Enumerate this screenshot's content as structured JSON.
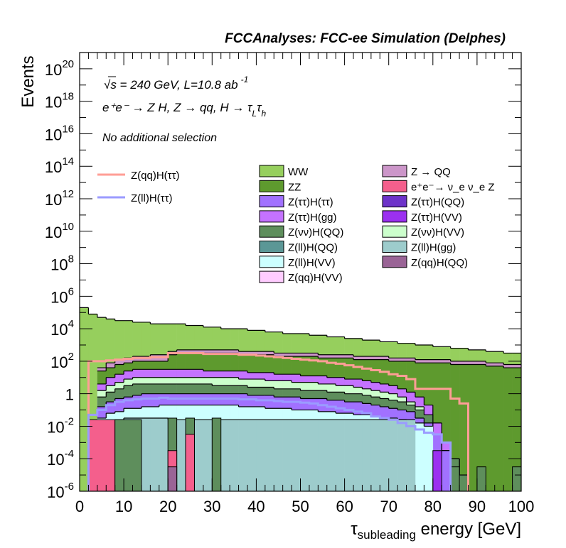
{
  "chart_data": {
    "type": "area",
    "title": "FCCAnalyses: FCC-ee Simulation (Delphes)",
    "xlabel": "τ_subleading energy [GeV]",
    "xlabel_main": "τ",
    "xlabel_sub": "subleading",
    "xlabel_rest": " energy [GeV]",
    "ylabel": "Events",
    "xlim": [
      0,
      100
    ],
    "ylim": [
      1e-06,
      1e+21
    ],
    "yscale": "log",
    "xticks": [
      "0",
      "10",
      "20",
      "30",
      "40",
      "50",
      "60",
      "70",
      "80",
      "90",
      "100"
    ],
    "yticks": [
      {
        "base": "10",
        "exp": "20",
        "value": 1e+20
      },
      {
        "base": "10",
        "exp": "18",
        "value": 1e+18
      },
      {
        "base": "10",
        "exp": "16",
        "value": 1e+16
      },
      {
        "base": "10",
        "exp": "14",
        "value": 100000000000000.0
      },
      {
        "base": "10",
        "exp": "12",
        "value": 1000000000000.0
      },
      {
        "base": "10",
        "exp": "10",
        "value": 10000000000.0
      },
      {
        "base": "10",
        "exp": "8",
        "value": 100000000.0
      },
      {
        "base": "10",
        "exp": "6",
        "value": 1000000.0
      },
      {
        "base": "10",
        "exp": "4",
        "value": 10000.0
      },
      {
        "base": "10",
        "exp": "2",
        "value": 100.0
      },
      {
        "base": "1",
        "exp": "",
        "value": 1
      },
      {
        "base": "10",
        "exp": "-2",
        "value": 0.01
      },
      {
        "base": "10",
        "exp": "-4",
        "value": 0.0001
      },
      {
        "base": "10",
        "exp": "-6",
        "value": 1e-06
      }
    ],
    "annotations": {
      "line1": "√s = 240 GeV, L=10.8 ab",
      "line1_sup": "-1",
      "line2": "e⁺e⁻ → Z H, Z → qq, H → τ",
      "line2_sub1": "L",
      "line2_mid": "τ",
      "line2_sub2": "h",
      "line3": "No additional selection"
    },
    "legend_lines": [
      {
        "name": "Z(qq)H(ττ)",
        "color": "#ff9e96"
      },
      {
        "name": "Z(ll)H(ττ)",
        "color": "#9b9bff"
      }
    ],
    "legend_fills": [
      {
        "name": "WW",
        "color": "#96cf5d"
      },
      {
        "name": "Z → QQ",
        "color": "#cc96c9"
      },
      {
        "name": "ZZ",
        "color": "#5e9a2e"
      },
      {
        "name": "e⁺e⁻→ ν_e ν_e Z",
        "color": "#f45f8c"
      },
      {
        "name": "Z(ττ)H(ττ)",
        "color": "#a171ff"
      },
      {
        "name": "Z(ττ)H(QQ)",
        "color": "#6d33c9"
      },
      {
        "name": "Z(ττ)H(gg)",
        "color": "#c472ff"
      },
      {
        "name": "Z(ττ)H(VV)",
        "color": "#9b30f0"
      },
      {
        "name": "Z(νν)H(QQ)",
        "color": "#5e8e5c"
      },
      {
        "name": "Z(νν)H(VV)",
        "color": "#ccffcc"
      },
      {
        "name": "Z(ll)H(QQ)",
        "color": "#5b9796"
      },
      {
        "name": "Z(ll)H(gg)",
        "color": "#9dcccc"
      },
      {
        "name": "Z(ll)H(VV)",
        "color": "#ccffff"
      },
      {
        "name": "Z(qq)H(QQ)",
        "color": "#9a6496"
      },
      {
        "name": "Z(qq)H(VV)",
        "color": "#ffccff"
      }
    ],
    "stack_bin_width": 2,
    "stack_layers": [
      {
        "name": "Z(ll)H(gg)",
        "color": "#9dcccc",
        "logy": [
          null,
          null,
          -2,
          -2,
          -1.6,
          -1.5,
          -1.5,
          -1.5,
          -1.5,
          -1.5,
          -1.6,
          -1.6,
          -1.6,
          -1.6,
          -1.6,
          -1.6,
          -1.6,
          -1.6,
          -1.6,
          -1.6,
          -1.6,
          -1.6,
          -1.6,
          -1.6,
          -1.6,
          -1.6,
          -1.6,
          -1.6,
          -1.6,
          -1.6,
          -1.6,
          -1.6,
          -1.6,
          -1.6,
          -1.6,
          -1.6,
          -1.6,
          -1.6,
          null,
          null,
          null,
          null,
          null,
          null,
          null,
          null,
          null,
          null,
          null,
          null
        ]
      },
      {
        "name": "Z(ll)H(VV)",
        "color": "#ccffff",
        "logy": [
          null,
          null,
          -1.5,
          -1.2,
          -1.1,
          -0.9,
          -0.9,
          -0.8,
          -0.8,
          -0.7,
          -0.7,
          -0.7,
          -0.7,
          -0.7,
          -0.7,
          -0.7,
          -0.7,
          -0.7,
          -0.8,
          -0.8,
          -0.8,
          -0.9,
          -0.9,
          -0.9,
          -1,
          -1,
          -1,
          -1.1,
          -1.1,
          -1.2,
          -1.2,
          -1.3,
          -1.3,
          -1.4,
          -1.5,
          -1.5,
          -1.6,
          -1.7,
          -1.8,
          -2,
          null,
          null,
          null,
          null,
          null,
          null,
          null,
          null,
          null,
          null
        ]
      },
      {
        "name": "Z(ττ)H(ττ)",
        "color": "#a171ff",
        "logy": [
          null,
          null,
          -0.8,
          -0.5,
          -0.3,
          -0.2,
          -0.1,
          0,
          0,
          0,
          0,
          0,
          0,
          0,
          0,
          0,
          0,
          0,
          0,
          -0.1,
          -0.1,
          -0.1,
          -0.2,
          -0.2,
          -0.2,
          -0.3,
          -0.3,
          -0.3,
          -0.4,
          -0.4,
          -0.5,
          -0.5,
          -0.6,
          -0.7,
          -0.8,
          -0.9,
          -1,
          -1.1,
          -1.5,
          -1.8,
          -2.5,
          -3.5,
          null,
          null,
          null,
          null,
          null,
          null,
          null,
          null
        ]
      },
      {
        "name": "Z(νν)H(QQ)",
        "color": "#5e8e5c",
        "logy": [
          null,
          null,
          -0.2,
          0.1,
          0.3,
          0.5,
          0.6,
          0.6,
          0.6,
          0.6,
          0.6,
          0.6,
          0.6,
          0.6,
          0.6,
          0.5,
          0.5,
          0.5,
          0.5,
          0.4,
          0.4,
          0.4,
          0.3,
          0.3,
          0.3,
          0.2,
          0.2,
          0.2,
          0.1,
          0.1,
          0,
          0,
          -0.1,
          -0.2,
          -0.3,
          -0.4,
          -0.5,
          -0.7,
          -1,
          -1.3,
          -2.5,
          -3.5,
          -4,
          -5,
          null,
          null,
          null,
          null,
          null,
          null
        ]
      },
      {
        "name": "Z(νν)H(VV)",
        "color": "#ccffcc",
        "logy": [
          null,
          null,
          0.2,
          0.5,
          0.7,
          0.9,
          1,
          1,
          1,
          1,
          1,
          1,
          1,
          1,
          1,
          1,
          1,
          1,
          0.9,
          0.9,
          0.9,
          0.8,
          0.8,
          0.8,
          0.7,
          0.7,
          0.7,
          0.6,
          0.6,
          0.5,
          0.5,
          0.4,
          0.3,
          0.2,
          0.1,
          0,
          -0.2,
          -0.5,
          -0.8,
          -1.3,
          -2.5,
          -3.5,
          -4,
          -5,
          null,
          null,
          null,
          null,
          null,
          null
        ]
      },
      {
        "name": "Z(ττ)H(gg)",
        "color": "#c472ff",
        "logy": [
          null,
          null,
          0.6,
          1,
          1.2,
          1.4,
          1.5,
          1.5,
          1.5,
          1.5,
          1.5,
          1.5,
          1.5,
          1.5,
          1.4,
          1.4,
          1.4,
          1.4,
          1.4,
          1.3,
          1.3,
          1.3,
          1.2,
          1.2,
          1.2,
          1.1,
          1.1,
          1.1,
          1.0,
          1.0,
          0.9,
          0.9,
          0.8,
          0.7,
          0.6,
          0.5,
          0.3,
          0.1,
          -0.2,
          -0.7,
          -1.8,
          -3,
          -4,
          -5,
          null,
          null,
          null,
          null,
          null,
          null
        ]
      },
      {
        "name": "ZZ",
        "color": "#5e9a2e",
        "logy": [
          null,
          null,
          1.4,
          1.6,
          1.8,
          1.9,
          2,
          2,
          2,
          2,
          2.4,
          2.5,
          2.5,
          2.5,
          2.5,
          2.5,
          2.5,
          2.5,
          2.4,
          2.4,
          2.4,
          2.4,
          2.3,
          2.3,
          2.3,
          2.3,
          2.3,
          2.2,
          2.2,
          2.2,
          2.2,
          2.1,
          2.1,
          2.1,
          2.1,
          2.0,
          2.0,
          2.0,
          1.9,
          1.9,
          1.9,
          1.9,
          1.8,
          1.8,
          1.8,
          1.8,
          1.7,
          1.7,
          1.6,
          1.6
        ]
      },
      {
        "name": "Z → QQ",
        "color": "#cc96c9",
        "logy": [
          null,
          null,
          1.6,
          1.9,
          2.1,
          2.2,
          2.3,
          2.3,
          2.4,
          2.4,
          2.6,
          2.7,
          2.7,
          2.7,
          2.7,
          2.7,
          2.7,
          2.7,
          2.6,
          2.6,
          2.6,
          2.6,
          2.5,
          2.5,
          2.5,
          2.5,
          2.5,
          2.4,
          2.4,
          2.4,
          2.4,
          2.3,
          2.3,
          2.3,
          2.3,
          2.2,
          2.2,
          2.2,
          2.1,
          2.1,
          2.1,
          2.1,
          2.0,
          2.0,
          2.0,
          2.0,
          1.9,
          1.9,
          1.8,
          1.8
        ]
      },
      {
        "name": "WW",
        "color": "#96cf5d",
        "logy": [
          5.3,
          4.9,
          4.7,
          4.6,
          4.5,
          4.5,
          4.4,
          4.4,
          4.3,
          4.3,
          4.3,
          4.3,
          4.2,
          4.2,
          4.1,
          4.1,
          4.0,
          4.0,
          4.0,
          3.9,
          3.9,
          3.8,
          3.8,
          3.7,
          3.7,
          3.7,
          3.6,
          3.6,
          3.5,
          3.5,
          3.4,
          3.4,
          3.3,
          3.3,
          3.2,
          3.2,
          3.1,
          3.1,
          3.0,
          3.0,
          2.9,
          2.9,
          2.8,
          2.8,
          2.7,
          2.7,
          2.6,
          2.6,
          2.5,
          2.5
        ]
      }
    ],
    "bars": [
      {
        "name": "e⁺e⁻→ ν_e ν_e Z",
        "color": "#f45f8c",
        "x": [
          2,
          8
        ],
        "logy": -1.6
      },
      {
        "name": "Z(νν)H(QQ)",
        "color": "#5e8e5c",
        "x": [
          8,
          14
        ],
        "logy": -1.6
      },
      {
        "name": "Z(νν)H(QQ)",
        "color": "#5e8e5c",
        "x": [
          20,
          22
        ],
        "logy": -1.5
      },
      {
        "name": "e⁺e⁻→ ν_e ν_e Z",
        "color": "#f45f8c",
        "x": [
          20,
          22
        ],
        "logy": -3.5
      },
      {
        "name": "Z(qq)H(QQ)",
        "color": "#9a6496",
        "x": [
          20,
          22
        ],
        "logy": -4.5
      },
      {
        "name": "Z(νν)H(QQ)",
        "color": "#5e8e5c",
        "x": [
          24,
          26
        ],
        "logy": -1.5
      },
      {
        "name": "e⁺e⁻→ ν_e ν_e Z",
        "color": "#f45f8c",
        "x": [
          24,
          26
        ],
        "logy": -2.5
      },
      {
        "name": "Z(νν)H(QQ)",
        "color": "#5e8e5c",
        "x": [
          30,
          32
        ],
        "logy": -1.5
      },
      {
        "name": "Z(ττ)H(VV)",
        "color": "#9b30f0",
        "x": [
          80,
          82
        ],
        "logy": -3.5
      },
      {
        "name": "Z(νν)H(QQ)",
        "color": "#5e8e5c",
        "x": [
          84,
          86
        ],
        "logy": -4.5
      },
      {
        "name": "Z(νν)H(QQ)",
        "color": "#5e8e5c",
        "x": [
          90,
          92
        ],
        "logy": -4.5
      },
      {
        "name": "Z(νν)H(QQ)",
        "color": "#5e8e5c",
        "x": [
          98,
          100
        ],
        "logy": -4.5
      }
    ],
    "line_series": [
      {
        "name": "Z(qq)H(ττ)",
        "color": "#ff9e96",
        "bin_width": 2,
        "logy": [
          -6.5,
          2,
          2.0,
          2.05,
          2.1,
          2.15,
          2.2,
          2.2,
          2.25,
          2.25,
          2.5,
          2.5,
          2.5,
          2.5,
          2.45,
          2.45,
          2.45,
          2.45,
          2.4,
          2.4,
          2.35,
          2.3,
          2.25,
          2.2,
          2.15,
          2.1,
          2.05,
          2.0,
          1.9,
          1.85,
          1.75,
          1.65,
          1.55,
          1.45,
          1.35,
          1.2,
          1.1,
          0.9,
          0.3,
          0.3,
          0.3,
          0.3,
          -0.3,
          -0.6,
          -6.5,
          -6.5,
          -6.5,
          -6.5,
          -6.5,
          -6.5
        ]
      },
      {
        "name": "Z(ll)H(ττ)",
        "color": "#9b9bff",
        "bin_width": 2,
        "logy": [
          -6.5,
          -1.3,
          -1,
          -0.7,
          -0.5,
          -0.4,
          -0.35,
          -0.3,
          -0.3,
          -0.25,
          -0.3,
          -0.3,
          -0.3,
          -0.3,
          -0.3,
          -0.3,
          -0.3,
          -0.3,
          -0.35,
          -0.35,
          -0.4,
          -0.4,
          -0.45,
          -0.5,
          -0.5,
          -0.55,
          -0.6,
          -0.7,
          -0.8,
          -0.9,
          -1.0,
          -1.1,
          -1.2,
          -1.4,
          -1.5,
          -1.6,
          -1.8,
          -2.0,
          -2.2,
          -2.4,
          -2.5,
          -3.0,
          -6.5,
          -6.5,
          -6.5,
          -6.5,
          -6.5,
          -6.5,
          -6.5,
          -6.5
        ]
      }
    ]
  }
}
